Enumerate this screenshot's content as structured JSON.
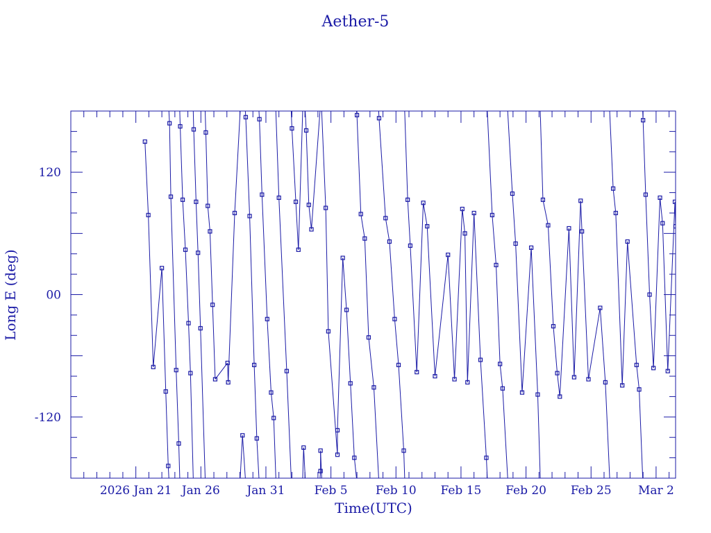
{
  "chart_data": {
    "type": "line",
    "title": "Aether-5",
    "xlabel": "Time(UTC)",
    "ylabel": "Long E (deg)",
    "x_tick_labels": [
      "2026 Jan 21",
      "Jan 26",
      "Jan 31",
      "Feb 5",
      "Feb 10",
      "Feb 15",
      "Feb 20",
      "Feb 25",
      "Mar  2"
    ],
    "x_tick_positions": [
      0,
      5,
      10,
      15,
      20,
      25,
      30,
      35,
      40
    ],
    "xlim": [
      -5,
      41.5
    ],
    "x_origin": "2026 Jan 21",
    "y_tick_labels": [
      "-120",
      "00",
      "120"
    ],
    "y_ticks": [
      -120,
      0,
      120
    ],
    "ylim": [
      -180,
      180
    ],
    "grid": false,
    "color": "#1a1aa6",
    "series": [
      {
        "wrap_longitude": true,
        "marker": "square",
        "points": [
          [
            0.7,
            150
          ],
          [
            0.96,
            78
          ],
          [
            1.34,
            -71
          ],
          [
            2.0,
            26
          ],
          [
            2.3,
            -95
          ],
          [
            2.49,
            -168
          ],
          [
            2.59,
            168
          ],
          [
            2.69,
            96
          ],
          [
            3.1,
            -74
          ],
          [
            3.3,
            -146
          ],
          [
            3.41,
            165
          ],
          [
            3.6,
            93
          ],
          [
            3.81,
            44
          ],
          [
            4.05,
            -28
          ],
          [
            4.2,
            -77
          ],
          [
            4.45,
            162
          ],
          [
            4.63,
            91
          ],
          [
            4.78,
            41
          ],
          [
            4.97,
            -33
          ],
          [
            5.38,
            159
          ],
          [
            5.53,
            87
          ],
          [
            5.7,
            62
          ],
          [
            5.9,
            -10
          ],
          [
            6.1,
            -83
          ],
          [
            7.05,
            -67
          ],
          [
            7.1,
            -86
          ],
          [
            7.6,
            80
          ],
          [
            8.2,
            -138
          ],
          [
            8.45,
            174
          ],
          [
            8.75,
            77
          ],
          [
            9.1,
            -69
          ],
          [
            9.3,
            -141
          ],
          [
            9.5,
            172
          ],
          [
            9.7,
            98
          ],
          [
            10.1,
            -24
          ],
          [
            10.4,
            -96
          ],
          [
            10.6,
            -121
          ],
          [
            11.0,
            95
          ],
          [
            11.6,
            -75
          ],
          [
            12.0,
            163
          ],
          [
            12.3,
            91
          ],
          [
            12.5,
            44
          ],
          [
            12.9,
            -150
          ],
          [
            13.1,
            161
          ],
          [
            13.3,
            88
          ],
          [
            13.5,
            64
          ],
          [
            14.2,
            -173
          ],
          [
            14.2,
            -153
          ],
          [
            14.6,
            85
          ],
          [
            14.8,
            -36
          ],
          [
            15.5,
            -157
          ],
          [
            15.5,
            -133
          ],
          [
            15.91,
            36
          ],
          [
            16.2,
            -15
          ],
          [
            16.5,
            -87
          ],
          [
            16.8,
            -160
          ],
          [
            17.0,
            176
          ],
          [
            17.3,
            79
          ],
          [
            17.6,
            55
          ],
          [
            17.9,
            -42
          ],
          [
            18.3,
            -91
          ],
          [
            18.7,
            173
          ],
          [
            19.2,
            75
          ],
          [
            19.5,
            52
          ],
          [
            19.9,
            -24
          ],
          [
            20.2,
            -69
          ],
          [
            20.6,
            -153
          ],
          [
            20.9,
            93
          ],
          [
            21.1,
            48
          ],
          [
            21.6,
            -76
          ],
          [
            22.1,
            90
          ],
          [
            22.4,
            67
          ],
          [
            23.0,
            -80
          ],
          [
            24.0,
            39
          ],
          [
            24.5,
            -83
          ],
          [
            25.1,
            84
          ],
          [
            25.3,
            60
          ],
          [
            25.5,
            -86
          ],
          [
            26.0,
            80
          ],
          [
            26.5,
            -64
          ],
          [
            26.95,
            -160
          ],
          [
            27.4,
            78
          ],
          [
            27.7,
            29
          ],
          [
            28.0,
            -68
          ],
          [
            28.2,
            -92
          ],
          [
            28.95,
            99
          ],
          [
            29.2,
            50
          ],
          [
            29.7,
            -96
          ],
          [
            30.4,
            46
          ],
          [
            30.9,
            -98
          ],
          [
            31.3,
            93
          ],
          [
            31.7,
            68
          ],
          [
            32.1,
            -31
          ],
          [
            32.4,
            -77
          ],
          [
            32.6,
            -100
          ],
          [
            33.3,
            65
          ],
          [
            33.7,
            -81
          ],
          [
            34.2,
            92
          ],
          [
            34.3,
            62
          ],
          [
            34.8,
            -83
          ],
          [
            35.7,
            -13
          ],
          [
            36.1,
            -86
          ],
          [
            36.7,
            104
          ],
          [
            36.9,
            80
          ],
          [
            37.4,
            -89
          ],
          [
            37.8,
            52
          ],
          [
            38.5,
            -69
          ],
          [
            38.7,
            -93
          ],
          [
            39.0,
            171
          ],
          [
            39.2,
            98
          ],
          [
            39.5,
            0
          ],
          [
            39.8,
            -72
          ],
          [
            40.3,
            95
          ],
          [
            40.5,
            70
          ],
          [
            40.9,
            -75
          ],
          [
            41.45,
            91
          ],
          [
            41.5,
            67
          ]
        ]
      }
    ]
  }
}
